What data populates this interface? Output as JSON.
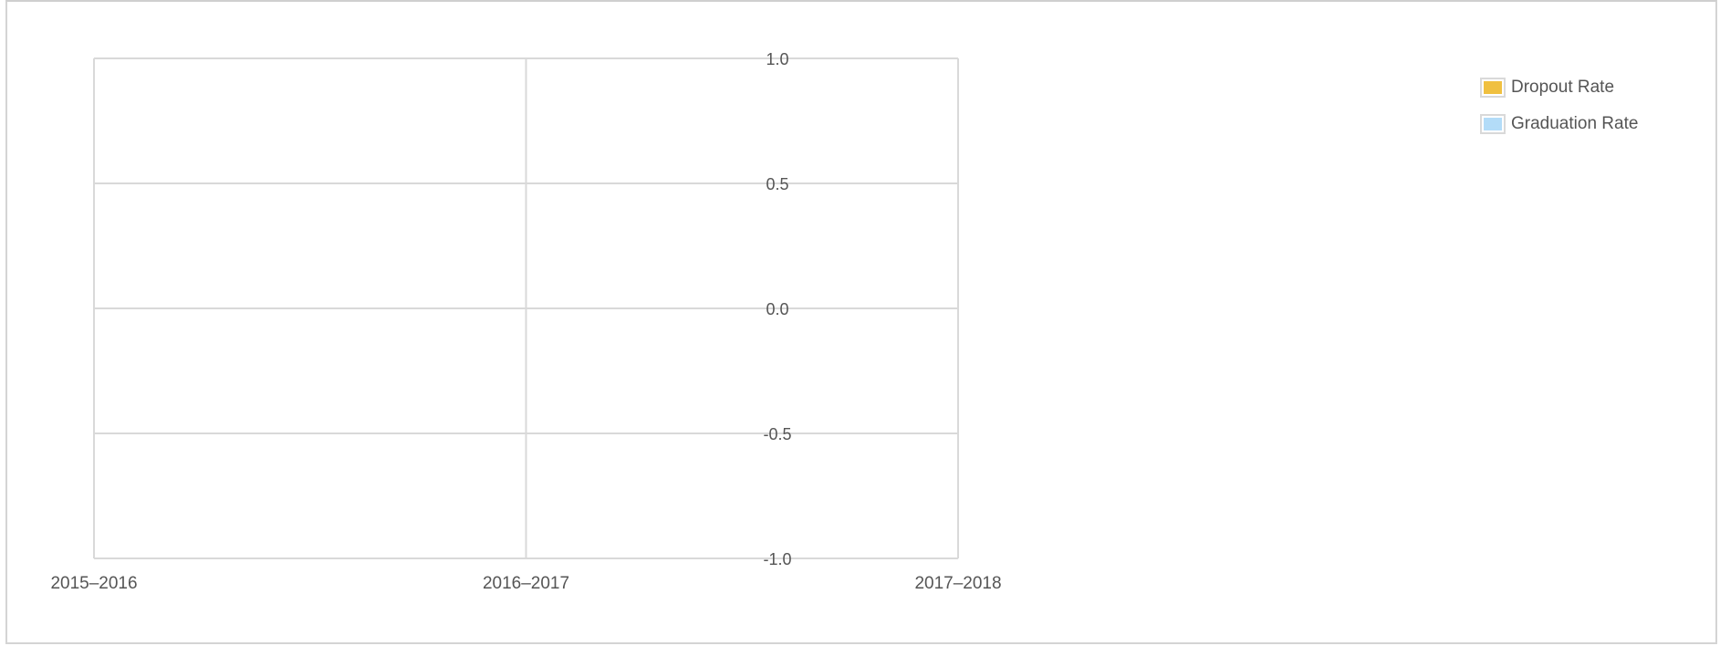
{
  "chart_data": {
    "type": "bar",
    "categories": [
      "2015–2016",
      "2016–2017",
      "2017–2018"
    ],
    "series": [
      {
        "name": "Dropout Rate",
        "color": "#f0c040",
        "values": [
          null,
          null,
          null
        ]
      },
      {
        "name": "Graduation Rate",
        "color": "#b3dcf8",
        "values": [
          null,
          null,
          null
        ]
      }
    ],
    "ylim": [
      -1.0,
      1.0
    ],
    "yticks": [
      1.0,
      0.5,
      0.0,
      -0.5,
      -1.0
    ],
    "ytick_labels": [
      "1.0",
      "0.5",
      "0.0",
      "-0.5",
      "-1.0"
    ],
    "grid": true,
    "legend_position": "top-right",
    "title": "",
    "xlabel": "",
    "ylabel": ""
  }
}
